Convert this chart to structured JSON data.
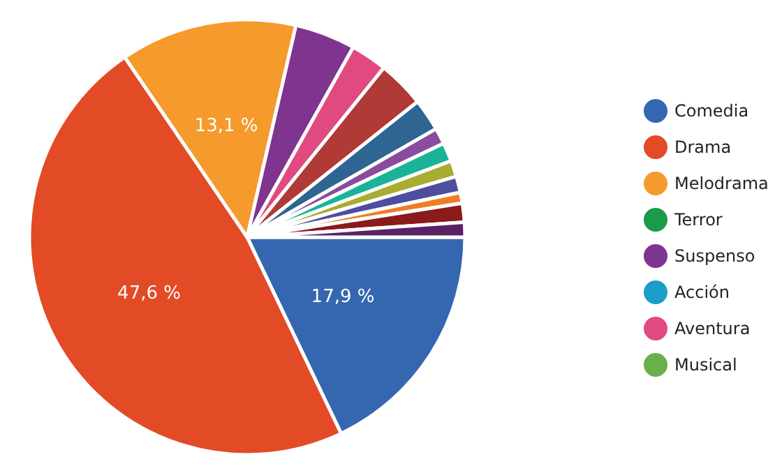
{
  "chart_data": {
    "type": "pie",
    "categories": [
      "Comedia",
      "Drama",
      "Melodrama",
      "Terror",
      "Suspenso",
      "Acción",
      "Aventura",
      "Musical",
      null,
      null,
      null,
      null,
      null,
      null,
      null,
      null,
      null
    ],
    "values": [
      17.9,
      47.6,
      13.1,
      0,
      4.5,
      0,
      2.7,
      0,
      3.5,
      2.4,
      1.2,
      1.4,
      1.2,
      1.2,
      0.8,
      1.4,
      1.1
    ],
    "colors": [
      "#3567b0",
      "#e34a26",
      "#f59a2c",
      "#1a9a4a",
      "#7f3490",
      "#1a9ec9",
      "#e04a80",
      "#6ab04a",
      "#b03a36",
      "#2f6592",
      "#8a4c9e",
      "#1ab39a",
      "#a8ad32",
      "#4e4ea0",
      "#ee7d25",
      "#8b1a1a",
      "#5a2265"
    ],
    "value_labels": [
      "17,9 %",
      "47,6 %",
      "13,1 %",
      null,
      null,
      null,
      null,
      null,
      null,
      null,
      null,
      null,
      null,
      null,
      null,
      null,
      null
    ],
    "legend": "right"
  }
}
